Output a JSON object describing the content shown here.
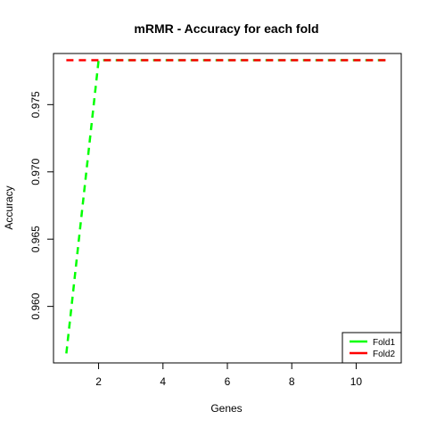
{
  "chart_data": {
    "type": "line",
    "title": "mRMR - Accuracy for each fold",
    "xlabel": "Genes",
    "ylabel": "Accuracy",
    "xlim": [
      0.6,
      11.4
    ],
    "ylim": [
      0.9558,
      0.9788
    ],
    "xticks": [
      2,
      4,
      6,
      8,
      10
    ],
    "yticks": [
      0.96,
      0.965,
      0.97,
      0.975
    ],
    "ytick_labels": [
      "0.960",
      "0.965",
      "0.970",
      "0.975"
    ],
    "grid": false,
    "legend_position": "bottom-right",
    "x": [
      1,
      2,
      3,
      4,
      5,
      6,
      7,
      8,
      9,
      10,
      11
    ],
    "series": [
      {
        "name": "Fold1",
        "color": "#00ff00",
        "line_style": "dashed",
        "values": [
          0.9565,
          0.9783,
          0.9783,
          0.9783,
          0.9783,
          0.9783,
          0.9783,
          0.9783,
          0.9783,
          0.9783,
          0.9783
        ]
      },
      {
        "name": "Fold2",
        "color": "#ff0000",
        "line_style": "dashed",
        "values": [
          0.9783,
          0.9783,
          0.9783,
          0.9783,
          0.9783,
          0.9783,
          0.9783,
          0.9783,
          0.9783,
          0.9783,
          0.9783
        ]
      }
    ]
  }
}
